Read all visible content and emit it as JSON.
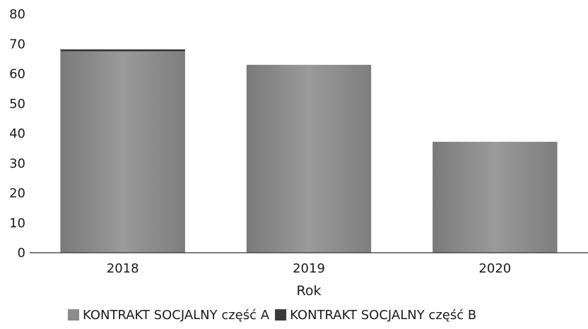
{
  "chart_data": {
    "type": "bar",
    "stacked": true,
    "categories": [
      "2018",
      "2019",
      "2020"
    ],
    "series": [
      {
        "name": "KONTRAKT SOCJALNY część A",
        "values": [
          67.5,
          63,
          37.2
        ],
        "color": "#8c8c8c"
      },
      {
        "name": "KONTRAKT SOCJALNY część B",
        "values": [
          0.7,
          0,
          0
        ],
        "color": "#3a3a3a"
      }
    ],
    "title": "",
    "xlabel": "Rok",
    "ylabel": "",
    "ylim": [
      0,
      80
    ],
    "yticks": [
      "0",
      "10",
      "20",
      "30",
      "40",
      "50",
      "60",
      "70",
      "80"
    ],
    "grid": false,
    "legend_position": "bottom"
  }
}
